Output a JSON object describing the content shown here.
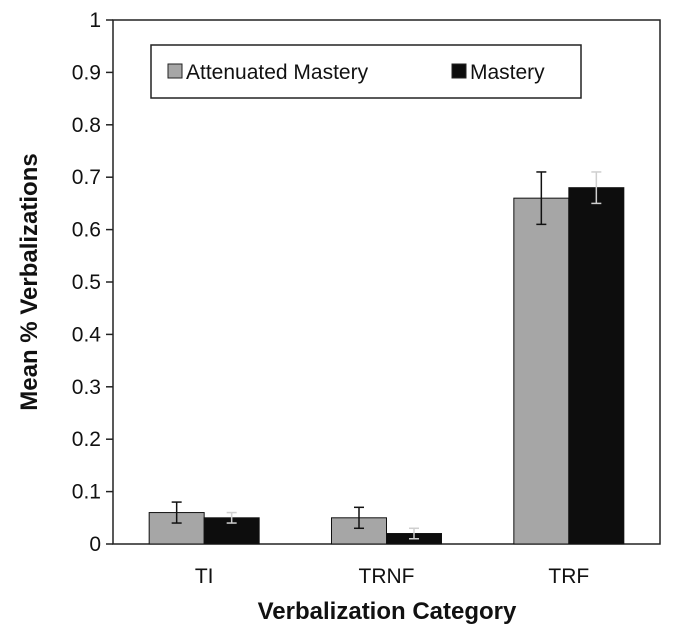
{
  "chart_data": {
    "type": "bar",
    "title": "",
    "xlabel": "Verbalization Category",
    "ylabel": "Mean % Verbalizations",
    "categories": [
      "TI",
      "TRNF",
      "TRF"
    ],
    "ylim": [
      0,
      1
    ],
    "yticks": [
      "0",
      "0.1",
      "0.2",
      "0.3",
      "0.4",
      "0.5",
      "0.6",
      "0.7",
      "0.8",
      "0.9",
      "1"
    ],
    "grid": false,
    "legend_position": "top-left inside",
    "series": [
      {
        "name": "Attenuated Mastery",
        "color": "#a6a6a6",
        "values": [
          0.06,
          0.05,
          0.66
        ],
        "error": [
          0.02,
          0.02,
          0.05
        ]
      },
      {
        "name": "Mastery",
        "color": "#0d0d0d",
        "values": [
          0.05,
          0.02,
          0.68
        ],
        "error": [
          0.01,
          0.01,
          0.03
        ]
      }
    ]
  }
}
